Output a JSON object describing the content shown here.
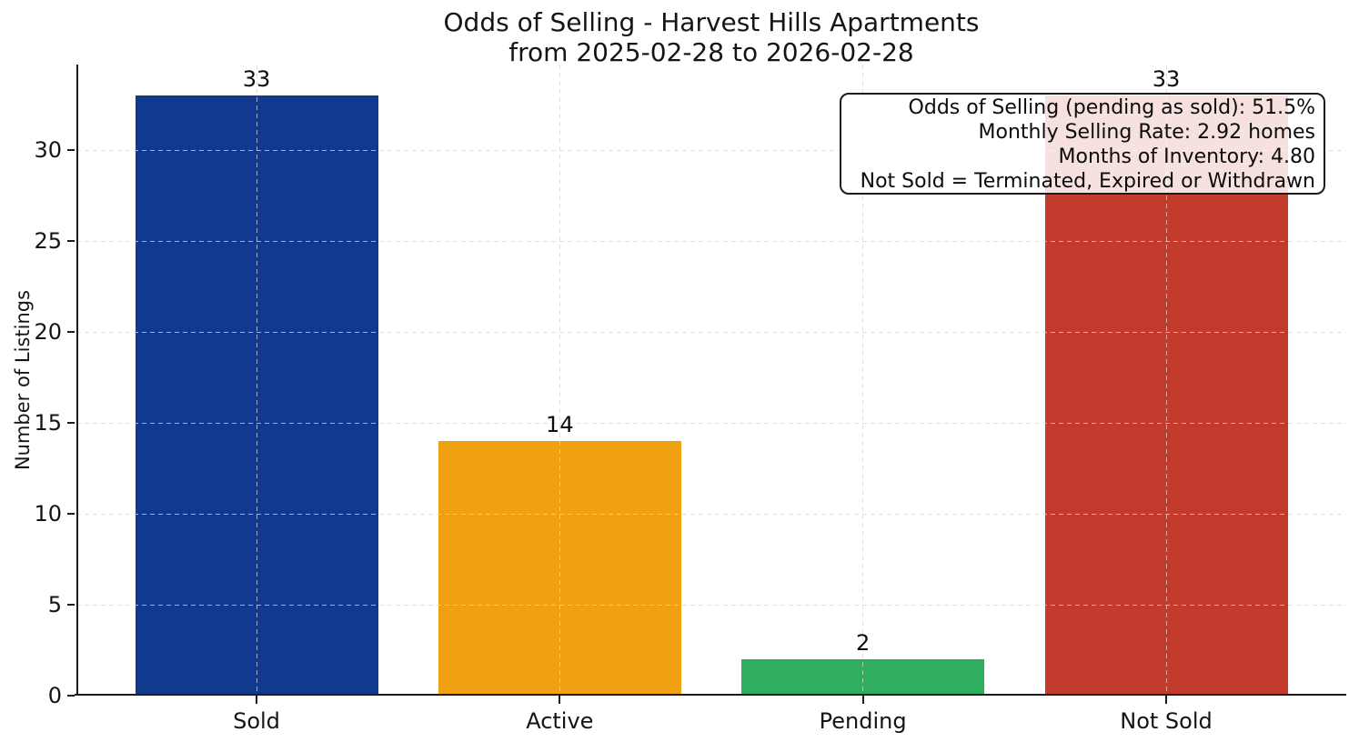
{
  "chart_data": {
    "type": "bar",
    "title": "Odds of Selling - Harvest Hills Apartments",
    "subtitle": "from 2025-02-28 to 2026-02-28",
    "categories": [
      "Sold",
      "Active",
      "Pending",
      "Not Sold"
    ],
    "values": [
      33,
      14,
      2,
      33
    ],
    "bar_colors": [
      "#11398E",
      "#F0A112",
      "#2FAE60",
      "#C23B2C"
    ],
    "xlabel": "",
    "ylabel": "Number of Listings",
    "yticks": [
      0,
      5,
      10,
      15,
      20,
      25,
      30
    ],
    "ylim": [
      0,
      34.7
    ],
    "grid": {
      "style": "dashed",
      "axes": "both",
      "color": "#d9d9d9",
      "drawn_above_bars": true
    },
    "annotation": {
      "lines": [
        "Odds of Selling (pending as sold): 51.5%",
        "Monthly Selling Rate: 2.92 homes",
        "Months of Inventory: 4.80",
        "Not Sold = Terminated, Expired or Withdrawn"
      ]
    }
  }
}
